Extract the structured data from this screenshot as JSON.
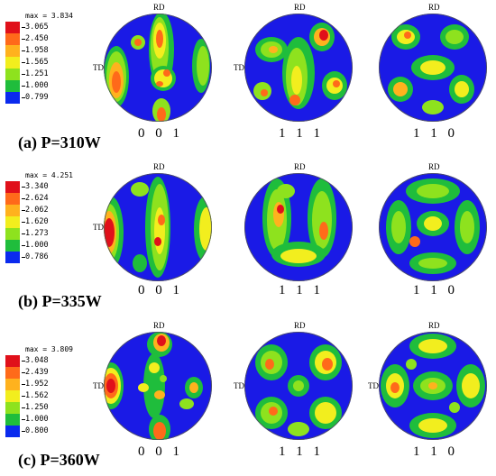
{
  "rows": [
    {
      "label": "(a) P=310W",
      "legend": {
        "max": "max = 3.834",
        "levels": [
          "3.065",
          "2.450",
          "1.958",
          "1.565",
          "1.251",
          "1.000",
          "0.799"
        ]
      },
      "figures": [
        {
          "indices": "0 0 1",
          "rd": "RD",
          "td": "TD"
        },
        {
          "indices": "1 1 1",
          "rd": "RD",
          "td": "TD"
        },
        {
          "indices": "1 1 0",
          "rd": "RD",
          "td": ""
        }
      ]
    },
    {
      "label": "(b) P=335W",
      "legend": {
        "max": "max = 4.251",
        "levels": [
          "3.340",
          "2.624",
          "2.062",
          "1.620",
          "1.273",
          "1.000",
          "0.786"
        ]
      },
      "figures": [
        {
          "indices": "0 0 1",
          "rd": "RD",
          "td": "TD"
        },
        {
          "indices": "1 1 1",
          "rd": "RD",
          "td": ""
        },
        {
          "indices": "1 1 0",
          "rd": "RD",
          "td": ""
        }
      ]
    },
    {
      "label": "(c) P=360W",
      "legend": {
        "max": "max = 3.809",
        "levels": [
          "3.048",
          "2.439",
          "1.952",
          "1.562",
          "1.250",
          "1.000",
          "0.800"
        ]
      },
      "figures": [
        {
          "indices": "0 0 1",
          "rd": "RD",
          "td": "TD"
        },
        {
          "indices": "1 1 1",
          "rd": "RD",
          "td": "TD"
        },
        {
          "indices": "1 1 0",
          "rd": "RD",
          "td": "TD"
        }
      ]
    }
  ],
  "colors": {
    "levels": [
      "#e0101a",
      "#ff6a1a",
      "#ffb21e",
      "#f2ee1e",
      "#8ee21e",
      "#1fbd3c",
      "#0a2aee"
    ],
    "background": "#1a1ae6"
  }
}
